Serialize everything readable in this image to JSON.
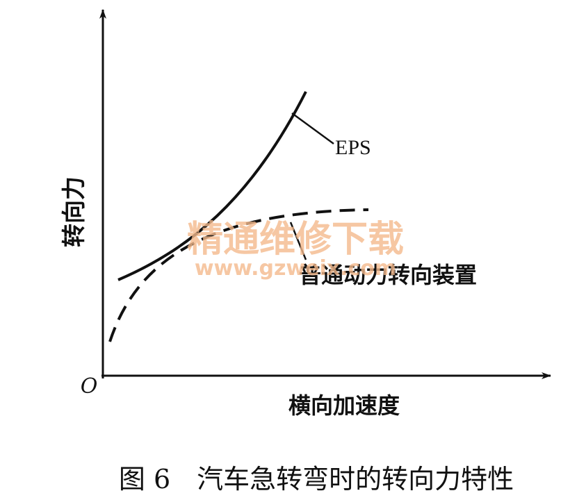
{
  "figure": {
    "y_axis_label": "转向力",
    "x_axis_label": "横向加速度",
    "origin_label": "O",
    "curves": [
      {
        "label": "EPS"
      },
      {
        "label": "普通动力转向装置"
      }
    ],
    "watermark": {
      "title": "精通维修下载",
      "url": "www.gzweix.com"
    },
    "caption": "图 6　汽车急转弯时的转向力特性"
  }
}
